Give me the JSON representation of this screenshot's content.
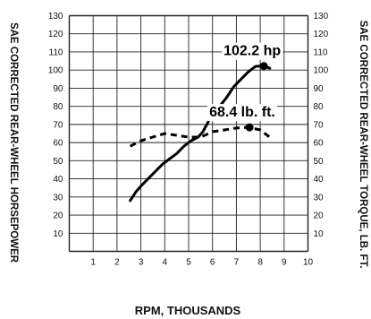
{
  "chart_data": {
    "type": "line",
    "xlabel": "RPM, THOUSANDS",
    "ylabel_left": "SAE CORRECTED REAR-WHEEL HORSEPOWER",
    "ylabel_right": "SAE CORRECTED REAR-WHEEL TORQUE, LB. FT.",
    "xlim": [
      0,
      10
    ],
    "ylim": [
      0,
      130
    ],
    "x_ticks": [
      "1",
      "2",
      "3",
      "4",
      "5",
      "6",
      "7",
      "8",
      "9",
      "10"
    ],
    "y_ticks": [
      "10",
      "20",
      "30",
      "40",
      "50",
      "60",
      "70",
      "80",
      "90",
      "100",
      "110",
      "120",
      "130"
    ],
    "grid": true,
    "series": [
      {
        "key": "horsepower",
        "style": "solid",
        "color": "#000000",
        "x": [
          2.55,
          2.8,
          3.0,
          3.3,
          3.6,
          3.9,
          4.2,
          4.5,
          4.8,
          5.1,
          5.4,
          5.6,
          5.8,
          6.0,
          6.3,
          6.6,
          6.9,
          7.2,
          7.5,
          7.8,
          8.0,
          8.2,
          8.4
        ],
        "y": [
          28,
          33,
          36,
          40,
          44,
          48,
          51,
          54,
          58,
          61,
          63,
          66,
          71,
          76,
          80,
          85,
          91,
          95,
          99,
          102,
          102.2,
          102,
          101
        ]
      },
      {
        "key": "torque",
        "style": "dashed",
        "color": "#000000",
        "x": [
          2.55,
          3.0,
          3.5,
          4.0,
          4.5,
          5.0,
          5.5,
          6.0,
          6.5,
          7.0,
          7.5,
          8.0,
          8.5
        ],
        "y": [
          58,
          61,
          63,
          65,
          64,
          63,
          63,
          66,
          67,
          68,
          68.4,
          67,
          62
        ]
      }
    ],
    "annotations": [
      {
        "text": "102.2 hp",
        "series": "horsepower",
        "x": 8.15,
        "y": 102.2
      },
      {
        "text": "68.4 lb. ft.",
        "series": "torque",
        "x": 7.55,
        "y": 68.4
      }
    ]
  }
}
